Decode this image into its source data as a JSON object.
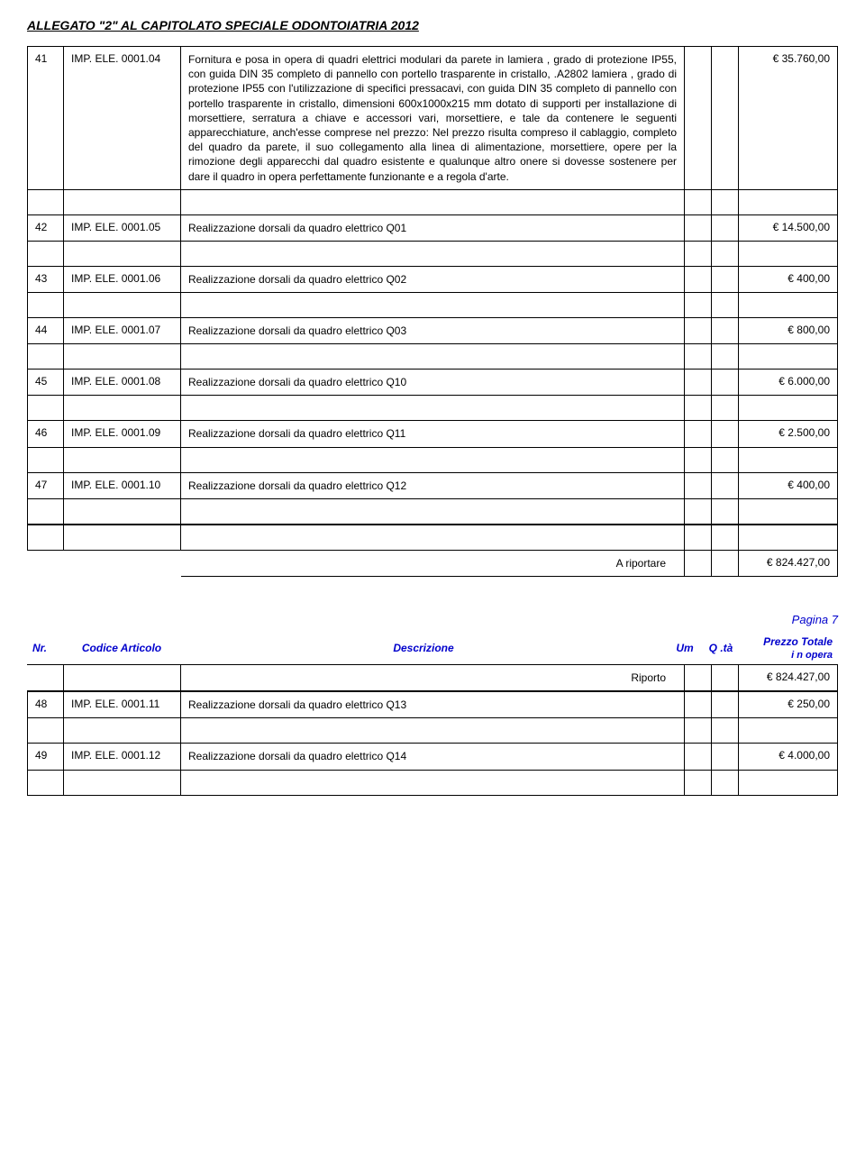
{
  "doc": {
    "header": "ALLEGATO \"2\" AL CAPITOLATO SPECIALE ODONTOIATRIA 2012"
  },
  "rows": [
    {
      "nr": "41",
      "code": "IMP. ELE. 0001.04",
      "desc": "Fornitura e posa in opera di quadri elettrici modulari da parete in lamiera , grado di protezione IP55, con guida DIN 35 completo di pannello con portello trasparente in cristallo, .A2802 lamiera , grado di protezione IP55 con l'utilizzazione di specifici pressacavi, con guida DIN 35 completo di pannello con portello trasparente in cristallo, dimensioni 600x1000x215 mm dotato di supporti per installazione di morsettiere, serratura a chiave e accessori vari, morsettiere, e tale da contenere le seguenti apparecchiature, anch'esse comprese nel prezzo: Nel prezzo risulta compreso il cablaggio, completo del quadro da parete, il suo collegamento alla linea di alimentazione, morsettiere, opere per la rimozione degli apparecchi dal quadro esistente e qualunque altro onere si dovesse sostenere per dare il quadro in opera perfettamente funzionante e a regola d'arte.",
      "price": "€ 35.760,00"
    },
    {
      "nr": "42",
      "code": "IMP. ELE. 0001.05",
      "desc": "Realizzazione dorsali da quadro elettrico Q01",
      "price": "€ 14.500,00"
    },
    {
      "nr": "43",
      "code": "IMP. ELE. 0001.06",
      "desc": "Realizzazione dorsali da quadro elettrico Q02",
      "price": "€ 400,00"
    },
    {
      "nr": "44",
      "code": "IMP. ELE. 0001.07",
      "desc": "Realizzazione dorsali da quadro elettrico Q03",
      "price": "€ 800,00"
    },
    {
      "nr": "45",
      "code": "IMP. ELE. 0001.08",
      "desc": "Realizzazione dorsali da quadro elettrico Q10",
      "price": "€ 6.000,00"
    },
    {
      "nr": "46",
      "code": "IMP. ELE. 0001.09",
      "desc": "Realizzazione dorsali da quadro elettrico Q11",
      "price": "€ 2.500,00"
    },
    {
      "nr": "47",
      "code": "IMP. ELE. 0001.10",
      "desc": "Realizzazione dorsali da quadro elettrico Q12",
      "price": "€ 400,00"
    }
  ],
  "riportare": {
    "label": "A riportare",
    "value": "€ 824.427,00"
  },
  "page7": {
    "label": "Pagina 7",
    "columns": {
      "nr": "Nr.",
      "code": "Codice Articolo",
      "desc": "Descrizione",
      "um": "Um",
      "qta": "Q .tà",
      "price": "Prezzo Totale",
      "inopera": "i n opera"
    },
    "riporto": {
      "label": "Riporto",
      "value": "€ 824.427,00"
    }
  },
  "rows2": [
    {
      "nr": "48",
      "code": "IMP. ELE. 0001.11",
      "desc": "Realizzazione dorsali da quadro elettrico Q13",
      "price": "€ 250,00"
    },
    {
      "nr": "49",
      "code": "IMP. ELE. 0001.12",
      "desc": "Realizzazione dorsali da quadro elettrico Q14",
      "price": "€ 4.000,00"
    }
  ],
  "style": {
    "row_border": "#000000",
    "blue": "#0000cc",
    "font_size_body": 12,
    "font_size_header": 14
  }
}
